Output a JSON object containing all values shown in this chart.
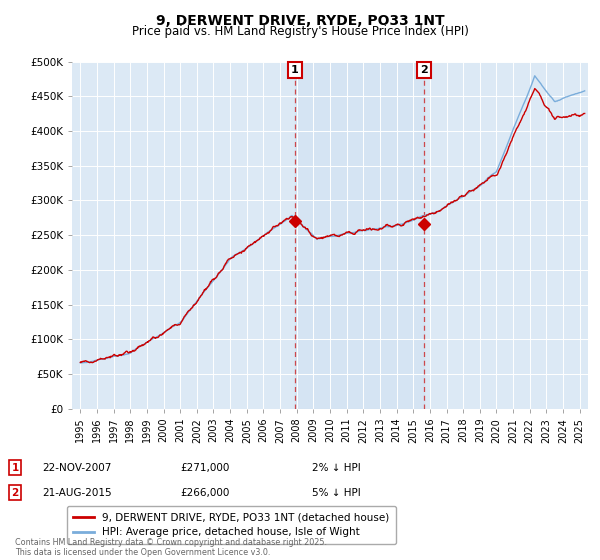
{
  "title": "9, DERWENT DRIVE, RYDE, PO33 1NT",
  "subtitle": "Price paid vs. HM Land Registry's House Price Index (HPI)",
  "ylabel_ticks": [
    "£0",
    "£50K",
    "£100K",
    "£150K",
    "£200K",
    "£250K",
    "£300K",
    "£350K",
    "£400K",
    "£450K",
    "£500K"
  ],
  "ytick_values": [
    0,
    50000,
    100000,
    150000,
    200000,
    250000,
    300000,
    350000,
    400000,
    450000,
    500000
  ],
  "ylim": [
    0,
    500000
  ],
  "xlim_start": 1994.5,
  "xlim_end": 2025.5,
  "xtick_years": [
    1995,
    1996,
    1997,
    1998,
    1999,
    2000,
    2001,
    2002,
    2003,
    2004,
    2005,
    2006,
    2007,
    2008,
    2009,
    2010,
    2011,
    2012,
    2013,
    2014,
    2015,
    2016,
    2017,
    2018,
    2019,
    2020,
    2021,
    2022,
    2023,
    2024,
    2025
  ],
  "marker1_x": 2007.9,
  "marker1_y": 271000,
  "marker1_label": "1",
  "marker1_date": "22-NOV-2007",
  "marker1_price": "£271,000",
  "marker1_hpi": "2% ↓ HPI",
  "marker2_x": 2015.65,
  "marker2_y": 266000,
  "marker2_label": "2",
  "marker2_date": "21-AUG-2015",
  "marker2_price": "£266,000",
  "marker2_hpi": "5% ↓ HPI",
  "line_color_property": "#cc0000",
  "line_color_hpi": "#7aaddb",
  "shade_color": "#ddeeff",
  "background_color": "#dce9f5",
  "legend_label_property": "9, DERWENT DRIVE, RYDE, PO33 1NT (detached house)",
  "legend_label_hpi": "HPI: Average price, detached house, Isle of Wight",
  "footer": "Contains HM Land Registry data © Crown copyright and database right 2025.\nThis data is licensed under the Open Government Licence v3.0."
}
